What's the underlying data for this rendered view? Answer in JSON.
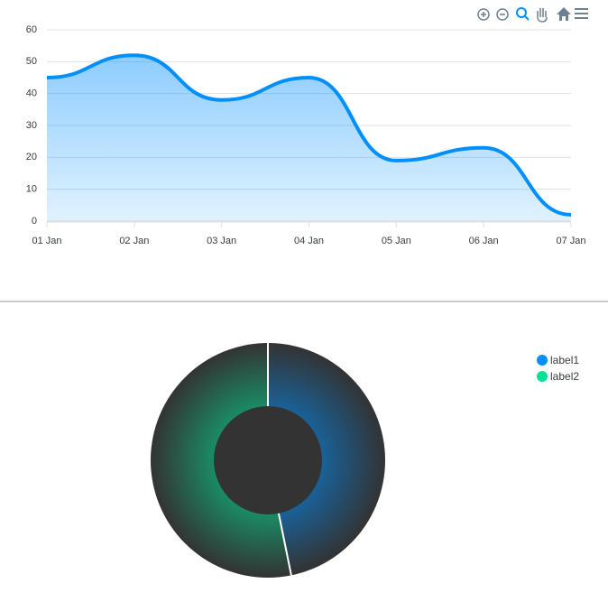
{
  "chart_data": [
    {
      "type": "area",
      "categories": [
        "01 Jan",
        "02 Jan",
        "03 Jan",
        "04 Jan",
        "05 Jan",
        "06 Jan",
        "07 Jan"
      ],
      "values": [
        45,
        52,
        38,
        45,
        19,
        23,
        2
      ],
      "color": "#008ffb",
      "ylim": [
        0,
        60
      ],
      "yticks": [
        0,
        10,
        20,
        30,
        40,
        50,
        60
      ],
      "grid": true
    },
    {
      "type": "donut",
      "categories": [
        "label1",
        "label2"
      ],
      "values": [
        44,
        50
      ],
      "colors": [
        "#008ffb",
        "#00e396"
      ],
      "legend": "top-right"
    }
  ]
}
